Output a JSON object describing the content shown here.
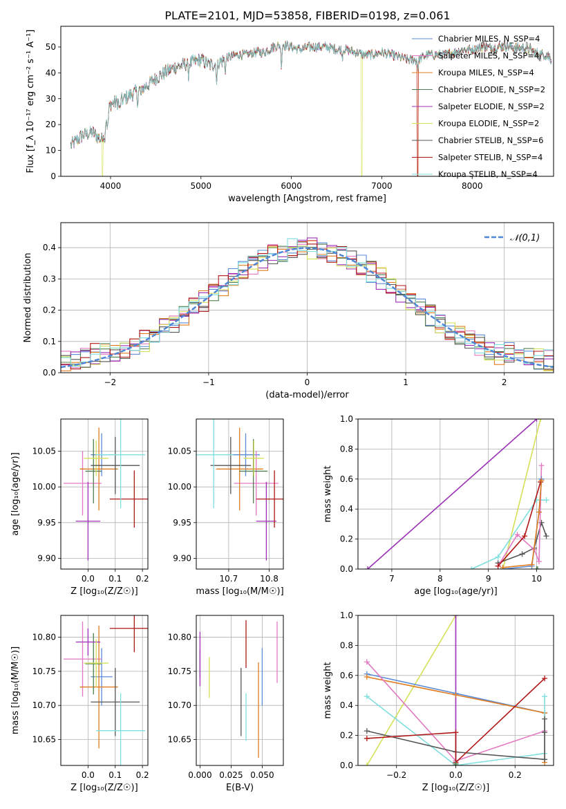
{
  "figure": {
    "title": "PLATE=2101, MJD=53858, FIBERID=0198, z=0.061"
  },
  "colors": {
    "Chabrier MILES": "#5b8bd6",
    "Salpeter MILES": "#e377c2",
    "Kroupa MILES": "#e07c1f",
    "Chabrier ELODIE": "#4f7d4f",
    "Salpeter ELODIE": "#9b2fb5",
    "Kroupa ELODIE": "#d4e157",
    "Chabrier STELIB": "#555555",
    "Salpeter STELIB": "#b01515",
    "Kroupa STELIB": "#7fdede"
  },
  "chart_data": [
    {
      "id": "spectrum",
      "type": "line",
      "xlabel": "wavelength [Angstrom, rest frame]",
      "ylabel": "Flux [f_λ 10⁻¹⁷ erg cm⁻² s⁻¹ A⁻¹]",
      "xlim": [
        3450,
        8900
      ],
      "ylim": [
        0,
        58
      ],
      "xticks": [
        4000,
        5000,
        6000,
        7000,
        8000
      ],
      "yticks": [
        0,
        10,
        20,
        30,
        40,
        50
      ],
      "legend_position": "top-right",
      "legend": [
        "Chabrier MILES, N_SSP=4",
        "Salpeter MILES, N_SSP=4",
        "Kroupa MILES, N_SSP=4",
        "Chabrier ELODIE, N_SSP=2",
        "Salpeter ELODIE, N_SSP=2",
        "Kroupa ELODIE, N_SSP=2",
        "Chabrier STELIB, N_SSP=6",
        "Salpeter STELIB, N_SSP=4",
        "Kroupa STELIB, N_SSP=4"
      ],
      "continuum": [
        [
          3560,
          12
        ],
        [
          3700,
          16
        ],
        [
          3800,
          17
        ],
        [
          3900,
          14
        ],
        [
          3950,
          22
        ],
        [
          4000,
          28
        ],
        [
          4100,
          29
        ],
        [
          4200,
          31
        ],
        [
          4300,
          33
        ],
        [
          4400,
          35
        ],
        [
          4500,
          38
        ],
        [
          4600,
          40
        ],
        [
          4700,
          42
        ],
        [
          4800,
          43
        ],
        [
          4900,
          44
        ],
        [
          5000,
          45
        ],
        [
          5100,
          43
        ],
        [
          5200,
          44
        ],
        [
          5300,
          46
        ],
        [
          5400,
          47
        ],
        [
          5500,
          47
        ],
        [
          5600,
          48
        ],
        [
          5700,
          48
        ],
        [
          5800,
          50
        ],
        [
          5900,
          51
        ],
        [
          6000,
          50
        ],
        [
          6100,
          49
        ],
        [
          6200,
          50
        ],
        [
          6300,
          50
        ],
        [
          6400,
          50
        ],
        [
          6500,
          49
        ],
        [
          6600,
          49
        ],
        [
          6700,
          48
        ],
        [
          6800,
          47
        ],
        [
          6900,
          47
        ],
        [
          7000,
          48
        ],
        [
          7100,
          47
        ],
        [
          7200,
          46
        ],
        [
          7300,
          45
        ],
        [
          7400,
          45
        ],
        [
          7500,
          47
        ],
        [
          7600,
          47
        ],
        [
          7700,
          47
        ],
        [
          7800,
          48
        ],
        [
          7900,
          49
        ],
        [
          8000,
          49
        ],
        [
          8100,
          50
        ],
        [
          8200,
          50
        ],
        [
          8300,
          50
        ],
        [
          8400,
          50
        ],
        [
          8500,
          50
        ],
        [
          8600,
          49
        ],
        [
          8700,
          48
        ],
        [
          8800,
          47
        ],
        [
          8880,
          45
        ]
      ],
      "features": [
        [
          3933,
          -6
        ],
        [
          3968,
          -6
        ],
        [
          4102,
          -4
        ],
        [
          4300,
          -4
        ],
        [
          4340,
          -3
        ],
        [
          4861,
          -4
        ],
        [
          5175,
          -7
        ],
        [
          5270,
          -4
        ],
        [
          5890,
          -8
        ],
        [
          6563,
          -3
        ],
        [
          7400,
          -3
        ]
      ],
      "dropouts": [
        {
          "series": "Kroupa ELODIE",
          "range": [
            3905,
            3915
          ]
        },
        {
          "series": "Kroupa ELODIE",
          "range": [
            6775,
            6785
          ]
        },
        {
          "series": "Salpeter STELIB",
          "range": [
            7390,
            7405
          ]
        },
        {
          "series": "Kroupa MILES",
          "range": [
            7392,
            7402
          ]
        }
      ],
      "noise_amplitude": 1.6
    },
    {
      "id": "residuals",
      "type": "line",
      "xlabel": "(data-model)/error",
      "ylabel": "Normed distribution",
      "xlim": [
        -2.5,
        2.5
      ],
      "ylim": [
        0,
        0.48
      ],
      "xticks": [
        -2,
        -1,
        0,
        1,
        2
      ],
      "yticks": [
        0.0,
        0.1,
        0.2,
        0.3,
        0.4
      ],
      "grid": true,
      "legend_position": "top-right",
      "legend": [
        "𝒩(0,1)"
      ],
      "reference_curve": "standard normal",
      "bin_width": 0.1,
      "series_jitter": 0.035
    },
    {
      "id": "age_vs_Z",
      "type": "scatter",
      "xlabel": "Z [log₁₀(Z/Z☉)]",
      "ylabel": "age  [log₁₀(age/yr)]",
      "xlim": [
        -0.1,
        0.22
      ],
      "ylim": [
        9.885,
        10.095
      ],
      "xticks": [
        0.0,
        0.1,
        0.2
      ],
      "yticks": [
        9.9,
        9.95,
        10.0,
        10.05
      ],
      "grid": true,
      "points": [
        {
          "series": "Chabrier MILES",
          "x": 0.05,
          "xerr": 0.04,
          "y": 10.045,
          "yerr": 0.03
        },
        {
          "series": "Salpeter MILES",
          "x": -0.02,
          "xerr": 0.07,
          "y": 10.005,
          "yerr": 0.045
        },
        {
          "series": "Kroupa MILES",
          "x": 0.04,
          "xerr": 0.07,
          "y": 10.025,
          "yerr": 0.058
        },
        {
          "series": "Chabrier ELODIE",
          "x": 0.02,
          "xerr": 0.03,
          "y": 10.022,
          "yerr": 0.045
        },
        {
          "series": "Salpeter ELODIE",
          "x": 0.0,
          "xerr": 0.045,
          "y": 9.952,
          "yerr": 0.055
        },
        {
          "series": "Kroupa ELODIE",
          "x": 0.03,
          "xerr": 0.045,
          "y": 10.04,
          "yerr": 0.025
        },
        {
          "series": "Chabrier STELIB",
          "x": 0.1,
          "xerr": 0.09,
          "y": 10.03,
          "yerr": 0.04
        },
        {
          "series": "Salpeter STELIB",
          "x": 0.17,
          "xerr": 0.09,
          "y": 9.983,
          "yerr": 0.04
        },
        {
          "series": "Kroupa STELIB",
          "x": 0.12,
          "xerr": 0.09,
          "y": 10.045,
          "yerr": 0.075
        }
      ]
    },
    {
      "id": "age_vs_mass",
      "type": "scatter",
      "xlabel": "mass [log₁₀(M/M☉)]",
      "ylabel": "",
      "xlim": [
        10.62,
        10.835
      ],
      "ylim": [
        9.885,
        10.095
      ],
      "xticks": [
        10.7,
        10.8
      ],
      "yticks": [
        9.9,
        9.95,
        10.0,
        10.05
      ],
      "grid": true,
      "points": [
        {
          "series": "Chabrier MILES",
          "x": 10.742,
          "xerr": 0.035,
          "y": 10.045,
          "yerr": 0.03
        },
        {
          "series": "Salpeter MILES",
          "x": 10.768,
          "xerr": 0.055,
          "y": 10.005,
          "yerr": 0.045
        },
        {
          "series": "Kroupa MILES",
          "x": 10.727,
          "xerr": 0.058,
          "y": 10.025,
          "yerr": 0.058
        },
        {
          "series": "Chabrier ELODIE",
          "x": 10.761,
          "xerr": 0.035,
          "y": 10.022,
          "yerr": 0.045
        },
        {
          "series": "Salpeter ELODIE",
          "x": 10.793,
          "xerr": 0.025,
          "y": 9.952,
          "yerr": 0.055
        },
        {
          "series": "Kroupa ELODIE",
          "x": 10.762,
          "xerr": 0.025,
          "y": 10.04,
          "yerr": 0.025
        },
        {
          "series": "Chabrier STELIB",
          "x": 10.705,
          "xerr": 0.05,
          "y": 10.03,
          "yerr": 0.04
        },
        {
          "series": "Salpeter STELIB",
          "x": 10.813,
          "xerr": 0.045,
          "y": 9.983,
          "yerr": 0.04
        },
        {
          "series": "Kroupa STELIB",
          "x": 10.663,
          "xerr": 0.048,
          "y": 10.045,
          "yerr": 0.075
        }
      ]
    },
    {
      "id": "massweight_vs_age",
      "type": "line",
      "xlabel": "age  [log₁₀(age/yr)]",
      "ylabel": "mass weight",
      "xlim": [
        6.3,
        10.35
      ],
      "ylim": [
        0.0,
        1.0
      ],
      "xticks": [
        7,
        8,
        9,
        10
      ],
      "yticks": [
        0.0,
        0.2,
        0.4,
        0.6,
        0.8,
        1.0
      ],
      "grid": true,
      "series": [
        {
          "name": "Salpeter ELODIE",
          "points": [
            [
              6.5,
              0.0
            ],
            [
              10.0,
              1.0
            ]
          ]
        },
        {
          "name": "Kroupa ELODIE",
          "points": [
            [
              9.3,
              0.0
            ],
            [
              10.08,
              1.0
            ]
          ]
        },
        {
          "name": "Kroupa STELIB",
          "points": [
            [
              8.65,
              0.0
            ],
            [
              9.2,
              0.08
            ],
            [
              10.0,
              0.46
            ],
            [
              10.2,
              0.46
            ]
          ]
        },
        {
          "name": "Chabrier STELIB",
          "points": [
            [
              9.2,
              0.04
            ],
            [
              9.7,
              0.1
            ],
            [
              9.95,
              0.14
            ],
            [
              10.1,
              0.31
            ],
            [
              10.2,
              0.22
            ]
          ]
        },
        {
          "name": "Salpeter MILES",
          "points": [
            [
              9.2,
              0.02
            ],
            [
              9.6,
              0.23
            ],
            [
              9.95,
              0.13
            ],
            [
              10.05,
              0.05
            ],
            [
              10.1,
              0.69
            ]
          ]
        },
        {
          "name": "Salpeter STELIB",
          "points": [
            [
              9.2,
              0.02
            ],
            [
              9.75,
              0.22
            ],
            [
              10.08,
              0.58
            ]
          ]
        },
        {
          "name": "Chabrier MILES",
          "points": [
            [
              9.3,
              0.0
            ],
            [
              9.9,
              0.02
            ],
            [
              10.05,
              0.38
            ],
            [
              10.1,
              0.6
            ]
          ]
        },
        {
          "name": "Kroupa MILES",
          "points": [
            [
              9.3,
              0.01
            ],
            [
              9.9,
              0.03
            ],
            [
              10.05,
              0.38
            ],
            [
              10.1,
              0.59
            ]
          ]
        },
        {
          "name": "Chabrier ELODIE",
          "points": [
            [
              10.0,
              0.0
            ],
            [
              10.02,
              0.0
            ]
          ]
        }
      ]
    },
    {
      "id": "mass_vs_Z",
      "type": "scatter",
      "xlabel": "Z [log₁₀(Z/Z☉)]",
      "ylabel": "mass [log₁₀(M/M☉)]",
      "xlim": [
        -0.1,
        0.22
      ],
      "ylim": [
        10.612,
        10.832
      ],
      "xticks": [
        0.0,
        0.1,
        0.2
      ],
      "yticks": [
        10.65,
        10.7,
        10.75,
        10.8
      ],
      "grid": true,
      "points": [
        {
          "series": "Chabrier MILES",
          "x": 0.05,
          "xerr": 0.04,
          "y": 10.742,
          "yerr": 0.042
        },
        {
          "series": "Salpeter MILES",
          "x": -0.02,
          "xerr": 0.07,
          "y": 10.768,
          "yerr": 0.055
        },
        {
          "series": "Kroupa MILES",
          "x": 0.04,
          "xerr": 0.07,
          "y": 10.727,
          "yerr": 0.09
        },
        {
          "series": "Chabrier ELODIE",
          "x": 0.02,
          "xerr": 0.03,
          "y": 10.761,
          "yerr": 0.045
        },
        {
          "series": "Salpeter ELODIE",
          "x": 0.0,
          "xerr": 0.045,
          "y": 10.793,
          "yerr": 0.02
        },
        {
          "series": "Kroupa ELODIE",
          "x": 0.03,
          "xerr": 0.045,
          "y": 10.762,
          "yerr": 0.035
        },
        {
          "series": "Chabrier STELIB",
          "x": 0.1,
          "xerr": 0.09,
          "y": 10.705,
          "yerr": 0.05
        },
        {
          "series": "Salpeter STELIB",
          "x": 0.17,
          "xerr": 0.09,
          "y": 10.813,
          "yerr": 0.035
        },
        {
          "series": "Kroupa STELIB",
          "x": 0.12,
          "xerr": 0.09,
          "y": 10.663,
          "yerr": 0.055
        }
      ]
    },
    {
      "id": "mass_vs_EBV",
      "type": "scatter",
      "xlabel": "E(B-V)",
      "ylabel": "",
      "xlim": [
        -0.003,
        0.067
      ],
      "ylim": [
        10.612,
        10.832
      ],
      "xticks": [
        0.0,
        0.025,
        0.05
      ],
      "xticklabels": [
        "0.000",
        "0.025",
        "0.050"
      ],
      "yticks": [
        10.65,
        10.7,
        10.75,
        10.8
      ],
      "grid": true,
      "points": [
        {
          "series": "Chabrier MILES",
          "x": 0.05,
          "y": 10.742,
          "yerr": 0.042
        },
        {
          "series": "Salpeter MILES",
          "x": 0.062,
          "y": 10.778,
          "yerr": 0.045
        },
        {
          "series": "Kroupa MILES",
          "x": 0.047,
          "y": 10.693,
          "yerr": 0.07
        },
        {
          "series": "Chabrier ELODIE",
          "x": 0.0,
          "y": 10.761,
          "yerr": 0.02
        },
        {
          "series": "Salpeter ELODIE",
          "x": 0.0,
          "y": 10.768,
          "yerr": 0.04
        },
        {
          "series": "Kroupa ELODIE",
          "x": 0.0075,
          "y": 10.741,
          "yerr": 0.03
        },
        {
          "series": "Chabrier STELIB",
          "x": 0.033,
          "y": 10.705,
          "yerr": 0.05
        },
        {
          "series": "Salpeter STELIB",
          "x": 0.037,
          "y": 10.79,
          "yerr": 0.035
        },
        {
          "series": "Kroupa STELIB",
          "x": 0.037,
          "y": 10.683,
          "yerr": 0.035
        }
      ]
    },
    {
      "id": "massweight_vs_Z",
      "type": "line",
      "xlabel": "Z [log₁₀(Z/Z☉)]",
      "ylabel": "mass weight",
      "xlim": [
        -0.33,
        0.33
      ],
      "ylim": [
        0.0,
        1.0
      ],
      "xticks": [
        -0.2,
        0.0,
        0.2
      ],
      "xticklabels": [
        "−0.2",
        "0.0",
        "0.2"
      ],
      "yticks": [
        0.0,
        0.2,
        0.4,
        0.6,
        0.8,
        1.0
      ],
      "grid": true,
      "series": [
        {
          "name": "Kroupa ELODIE",
          "points": [
            [
              -0.3,
              0.0
            ],
            [
              0.0,
              1.0
            ]
          ]
        },
        {
          "name": "Salpeter ELODIE",
          "points": [
            [
              0.0,
              0.0
            ],
            [
              0.0,
              1.0
            ]
          ]
        },
        {
          "name": "Chabrier MILES",
          "points": [
            [
              -0.3,
              0.61
            ],
            [
              0.0,
              0.48
            ],
            [
              0.3,
              0.35
            ]
          ]
        },
        {
          "name": "Kroupa MILES",
          "points": [
            [
              -0.3,
              0.59
            ],
            [
              0.0,
              0.47
            ],
            [
              0.3,
              0.35
            ],
            [
              0.3,
              0.02
            ]
          ]
        },
        {
          "name": "Salpeter MILES",
          "points": [
            [
              -0.3,
              0.69
            ],
            [
              0.0,
              0.03
            ],
            [
              0.3,
              0.23
            ]
          ]
        },
        {
          "name": "Kroupa STELIB",
          "points": [
            [
              -0.3,
              0.46
            ],
            [
              0.0,
              0.0
            ],
            [
              0.3,
              0.08
            ],
            [
              0.3,
              0.46
            ]
          ]
        },
        {
          "name": "Chabrier STELIB",
          "points": [
            [
              -0.3,
              0.23
            ],
            [
              0.0,
              0.09
            ],
            [
              0.3,
              0.04
            ],
            [
              0.3,
              0.31
            ],
            [
              0.3,
              0.22
            ]
          ]
        },
        {
          "name": "Salpeter STELIB",
          "points": [
            [
              -0.3,
              0.18
            ],
            [
              0.0,
              0.22
            ],
            [
              0.0,
              0.02
            ],
            [
              0.3,
              0.58
            ]
          ]
        },
        {
          "name": "Chabrier ELODIE",
          "points": [
            [
              0.0,
              0.0
            ],
            [
              0.0,
              0.01
            ]
          ]
        }
      ]
    }
  ]
}
